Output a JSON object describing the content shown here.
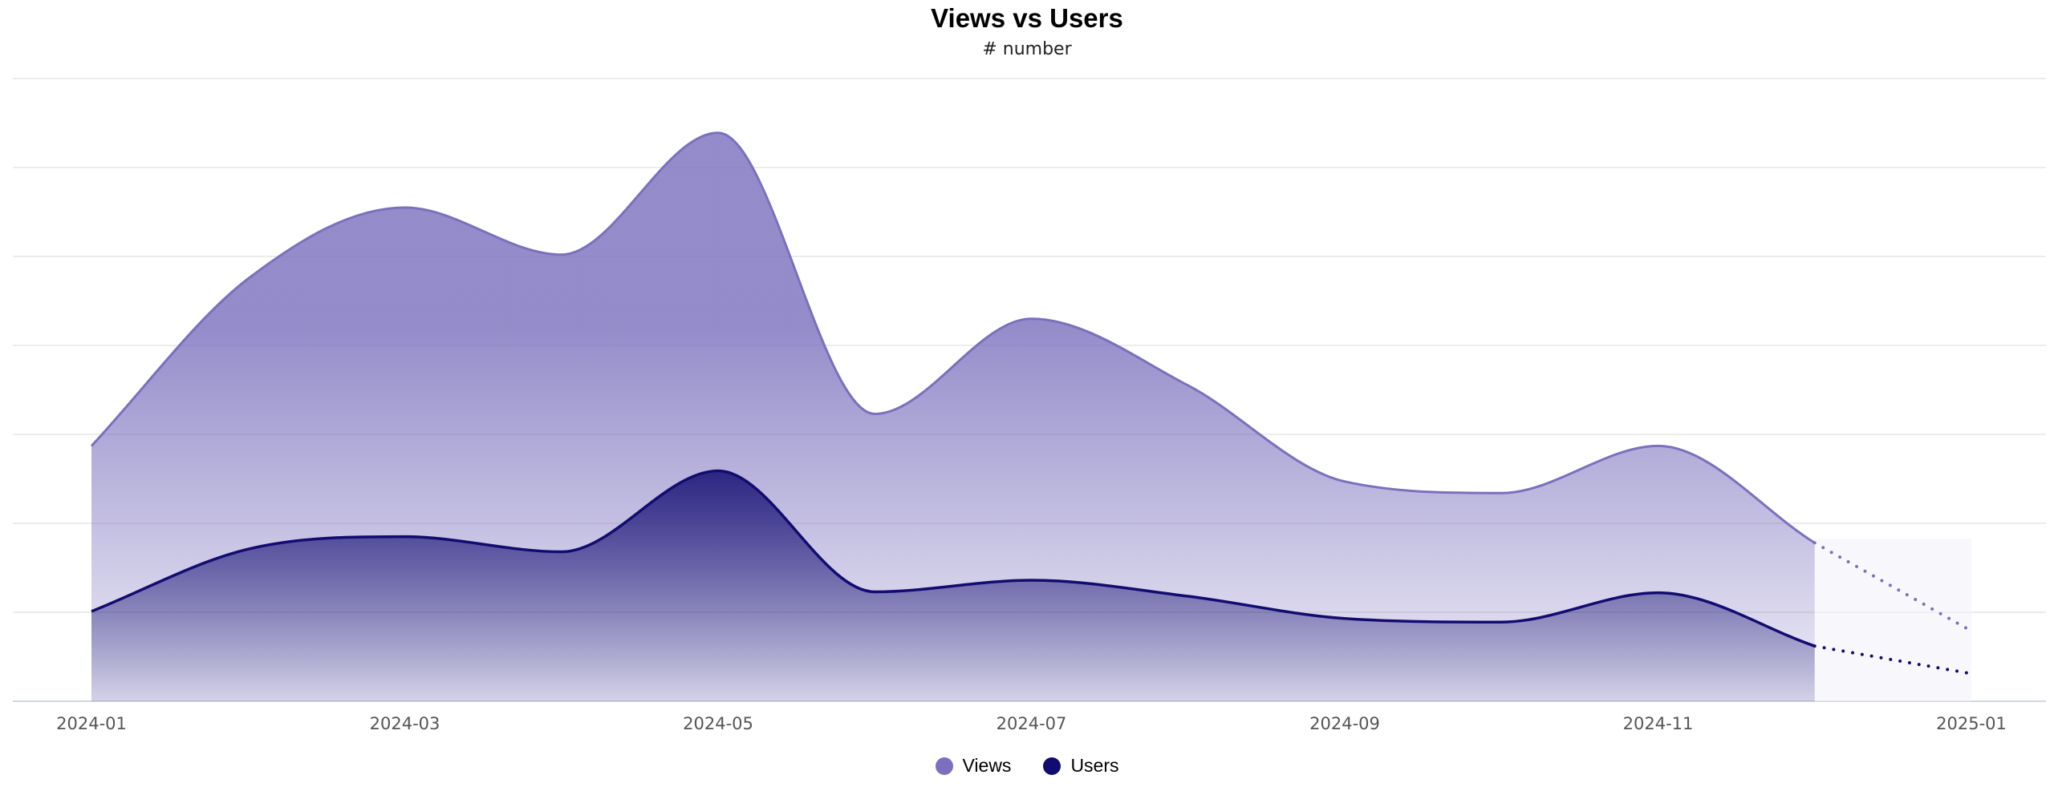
{
  "chart_data": {
    "type": "area",
    "title": "Views vs Users",
    "subtitle": "# number",
    "xlabel": "",
    "ylabel": "",
    "ylim": [
      0,
      70
    ],
    "y_gridlines": [
      0,
      10,
      20,
      30,
      40,
      50,
      60,
      70
    ],
    "x_tick_labels": [
      "2024-01",
      "2024-03",
      "2024-05",
      "2024-07",
      "2024-09",
      "2024-11",
      "2025-01"
    ],
    "x": [
      "2024-01",
      "2024-02",
      "2024-03",
      "2024-04",
      "2024-05",
      "2024-06",
      "2024-07",
      "2024-08",
      "2024-09",
      "2024-10",
      "2024-11",
      "2024-12",
      "2025-01"
    ],
    "forecast_from": "2024-12",
    "series": [
      {
        "name": "Views",
        "color": "#7a70bd",
        "values": [
          28.7,
          47.5,
          55.5,
          50.2,
          63.9,
          32.3,
          43.0,
          35.5,
          24.7,
          23.4,
          28.7,
          17.8,
          7.9
        ]
      },
      {
        "name": "Users",
        "color": "#120c72",
        "values": [
          10.1,
          17.1,
          18.5,
          16.8,
          25.9,
          12.3,
          13.6,
          11.8,
          9.3,
          8.9,
          12.2,
          6.2,
          3.1
        ]
      }
    ],
    "legend_position": "bottom-center",
    "grid": true
  }
}
